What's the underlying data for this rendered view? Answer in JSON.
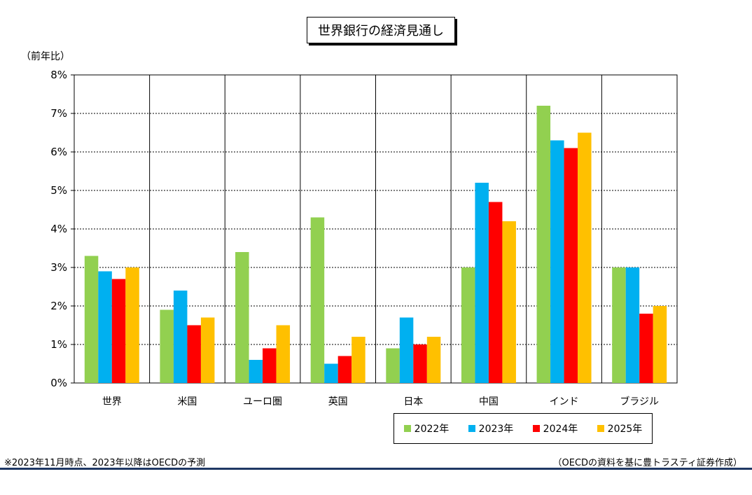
{
  "title": "世界銀行の経済見通し",
  "y_unit_label": "（前年比）",
  "footnote": "※2023年11月時点、2023年以降はOECDの予測",
  "source": "（OECDの資料を基に豊トラスティ証券作成）",
  "colors": {
    "2022年": "#92d050",
    "2023年": "#00b0f0",
    "2024年": "#ff0000",
    "2025年": "#ffc000"
  },
  "chart_data": {
    "type": "bar",
    "title": "世界銀行の経済見通し",
    "ylabel": "（前年比）",
    "xlabel": "",
    "ylim": [
      0,
      8
    ],
    "yticks": [
      "0%",
      "1%",
      "2%",
      "3%",
      "4%",
      "5%",
      "6%",
      "7%",
      "8%"
    ],
    "grid": true,
    "legend_position": "bottom-right",
    "categories": [
      "世界",
      "米国",
      "ユーロ圏",
      "英国",
      "日本",
      "中国",
      "インド",
      "ブラジル"
    ],
    "series": [
      {
        "name": "2022年",
        "color": "#92d050",
        "values": [
          3.3,
          1.9,
          3.4,
          4.3,
          0.9,
          3.0,
          7.2,
          3.0
        ]
      },
      {
        "name": "2023年",
        "color": "#00b0f0",
        "values": [
          2.9,
          2.4,
          0.6,
          0.5,
          1.7,
          5.2,
          6.3,
          3.0
        ]
      },
      {
        "name": "2024年",
        "color": "#ff0000",
        "values": [
          2.7,
          1.5,
          0.9,
          0.7,
          1.0,
          4.7,
          6.1,
          1.8
        ]
      },
      {
        "name": "2025年",
        "color": "#ffc000",
        "values": [
          3.0,
          1.7,
          1.5,
          1.2,
          1.2,
          4.2,
          6.5,
          2.0
        ]
      }
    ]
  }
}
